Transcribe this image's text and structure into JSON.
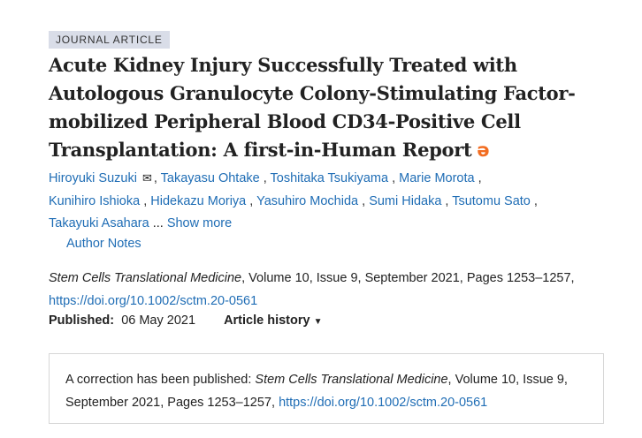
{
  "badge": "JOURNAL ARTICLE",
  "title": "Acute Kidney Injury Successfully Treated with Autologous Granulocyte Colony-Stimulating Factor-mobilized Peripheral Blood CD34-Positive Cell Transplantation: A first-in-Human Report",
  "open_access_icon": "open-access-lock-icon",
  "authors": [
    "Hiroyuki Suzuki",
    "Takayasu Ohtake",
    "Toshitaka Tsukiyama",
    "Marie Morota",
    "Kunihiro Ishioka",
    "Hidekazu Moriya",
    "Yasuhiro Mochida",
    "Sumi Hidaka",
    "Tsutomu Sato",
    "Takayuki Asahara"
  ],
  "email_icon": "envelope-icon",
  "ellipsis": "...",
  "show_more": "Show more",
  "author_notes": "Author Notes",
  "citation": {
    "journal": "Stem Cells Translational Medicine",
    "details": ", Volume 10, Issue 9, September 2021, Pages 1253–1257,",
    "doi": "https://doi.org/10.1002/sctm.20-0561"
  },
  "published_label": "Published:",
  "published_date": "06 May 2021",
  "article_history": "Article history",
  "correction": {
    "prefix": "A correction has been published: ",
    "journal": "Stem Cells Translational Medicine",
    "details": ", Volume 10, Issue 9, September 2021, Pages 1253–1257, ",
    "doi": "https://doi.org/10.1002/sctm.20-0561"
  },
  "colors": {
    "link": "#1f6db5",
    "open_access": "#f26d21",
    "badge_bg": "#d9dde8"
  }
}
